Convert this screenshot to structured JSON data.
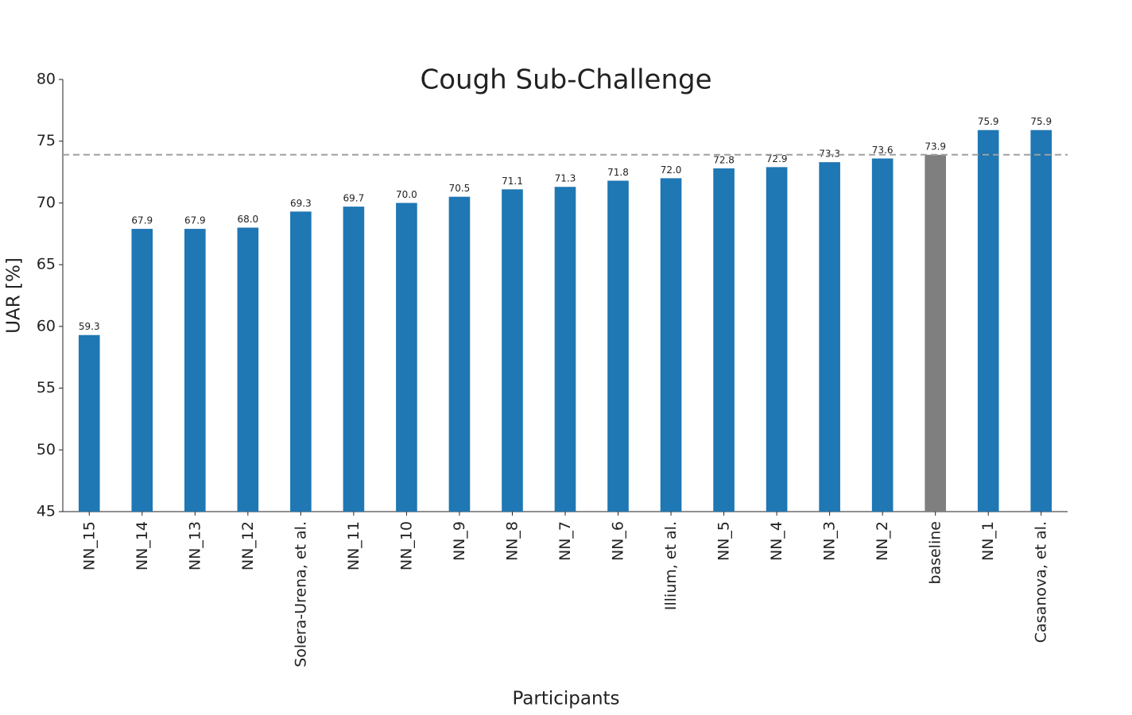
{
  "chart_data": {
    "type": "bar",
    "title": "Cough Sub-Challenge",
    "xlabel": "Participants",
    "ylabel": "UAR [%]",
    "categories": [
      "NN_15",
      "NN_14",
      "NN_13",
      "NN_12",
      "Solera-Urena, et al.",
      "NN_11",
      "NN_10",
      "NN_9",
      "NN_8",
      "NN_7",
      "NN_6",
      "Illium, et al.",
      "NN_5",
      "NN_4",
      "NN_3",
      "NN_2",
      "baseline",
      "NN_1",
      "Casanova, et al."
    ],
    "values": [
      59.3,
      67.9,
      67.9,
      68.0,
      69.3,
      69.7,
      70.0,
      70.5,
      71.1,
      71.3,
      71.8,
      72.0,
      72.8,
      72.9,
      73.3,
      73.6,
      73.9,
      75.9,
      75.9
    ],
    "value_labels": [
      "59.3",
      "67.9",
      "67.9",
      "68.0",
      "69.3",
      "69.7",
      "70.0",
      "70.5",
      "71.1",
      "71.3",
      "71.8",
      "72.0",
      "72.8",
      "72.9",
      "73.3",
      "73.6",
      "73.9",
      "75.9",
      "75.9"
    ],
    "colors": [
      "#1f77b4",
      "#1f77b4",
      "#1f77b4",
      "#1f77b4",
      "#1f77b4",
      "#1f77b4",
      "#1f77b4",
      "#1f77b4",
      "#1f77b4",
      "#1f77b4",
      "#1f77b4",
      "#1f77b4",
      "#1f77b4",
      "#1f77b4",
      "#1f77b4",
      "#1f77b4",
      "#7f7f7f",
      "#1f77b4",
      "#1f77b4"
    ],
    "hline": {
      "value": 73.9,
      "color": "#a0a0a0",
      "style": "dashed"
    },
    "ylim": [
      45,
      80
    ],
    "yticks": [
      45,
      50,
      55,
      60,
      65,
      70,
      75,
      80
    ],
    "grid": false
  }
}
